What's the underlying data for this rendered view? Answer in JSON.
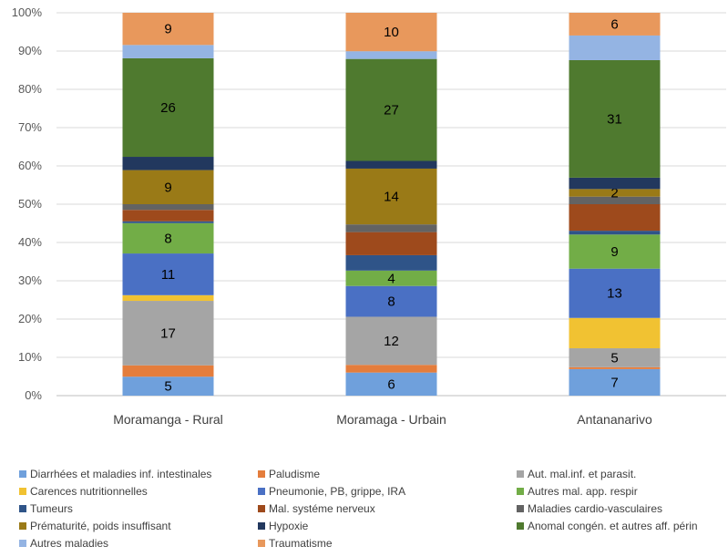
{
  "chart_data": {
    "type": "bar",
    "stacked": "percent",
    "categories": [
      "Moramanga - Rural",
      "Moramaga - Urbain",
      "Antananarivo"
    ],
    "y_ticks": [
      "0%",
      "10%",
      "20%",
      "30%",
      "40%",
      "50%",
      "60%",
      "70%",
      "80%",
      "90%",
      "100%"
    ],
    "ylim": [
      0,
      100
    ],
    "grid": true,
    "legend_position": "bottom",
    "series": [
      {
        "name": "Diarrhées et maladies inf. intestinales",
        "color": "#6fa0dc",
        "values": [
          5,
          6,
          7
        ],
        "labels": [
          "5",
          "6",
          "7"
        ]
      },
      {
        "name": "Paludisme",
        "color": "#e47d3c",
        "values": [
          3,
          2,
          0.5
        ],
        "labels": [
          "",
          "",
          ""
        ]
      },
      {
        "name": "Aut. mal.inf. et parasit.",
        "color": "#a5a5a5",
        "values": [
          17,
          12.5,
          5
        ],
        "labels": [
          "17",
          "12",
          "5"
        ]
      },
      {
        "name": "Carences nutritionnelles",
        "color": "#f1c232",
        "values": [
          1.5,
          0,
          8
        ],
        "labels": [
          "",
          "",
          ""
        ]
      },
      {
        "name": "Pneumonie, PB, grippe, IRA",
        "color": "#4a70c4",
        "values": [
          11,
          8,
          13
        ],
        "labels": [
          "11",
          "8",
          "13"
        ]
      },
      {
        "name": "Autres mal. app. respir",
        "color": "#72ad47",
        "values": [
          8,
          4,
          9
        ],
        "labels": [
          "8",
          "4",
          "9"
        ]
      },
      {
        "name": "Tumeurs",
        "color": "#2f5488",
        "values": [
          0.5,
          4,
          1
        ],
        "labels": [
          "",
          "",
          ""
        ]
      },
      {
        "name": "Mal. systéme nerveux",
        "color": "#9e4a1c",
        "values": [
          3,
          6,
          7
        ],
        "labels": [
          "",
          "",
          ""
        ]
      },
      {
        "name": "Maladies cardio-vasculaires",
        "color": "#636363",
        "values": [
          1.5,
          2,
          2
        ],
        "labels": [
          "",
          "",
          ""
        ]
      },
      {
        "name": "Prématurité, poids insuffisant",
        "color": "#9a7a17",
        "values": [
          9,
          14.5,
          2
        ],
        "labels": [
          "9",
          "14",
          "2"
        ]
      },
      {
        "name": "Hypoxie",
        "color": "#22385e",
        "values": [
          3.5,
          2,
          3
        ],
        "labels": [
          "",
          "",
          ""
        ]
      },
      {
        "name": "Anomal congén. et autres aff. périn",
        "color": "#4f7a2f",
        "values": [
          26,
          26.5,
          31
        ],
        "labels": [
          "26",
          "27",
          "31"
        ]
      },
      {
        "name": "Autres maladies",
        "color": "#94b4e3",
        "values": [
          3.5,
          2,
          6.5
        ],
        "labels": [
          "",
          "",
          ""
        ]
      },
      {
        "name": "Traumatisme",
        "color": "#e8985c",
        "values": [
          8.5,
          10,
          6
        ],
        "labels": [
          "9",
          "10",
          "6"
        ]
      }
    ]
  }
}
